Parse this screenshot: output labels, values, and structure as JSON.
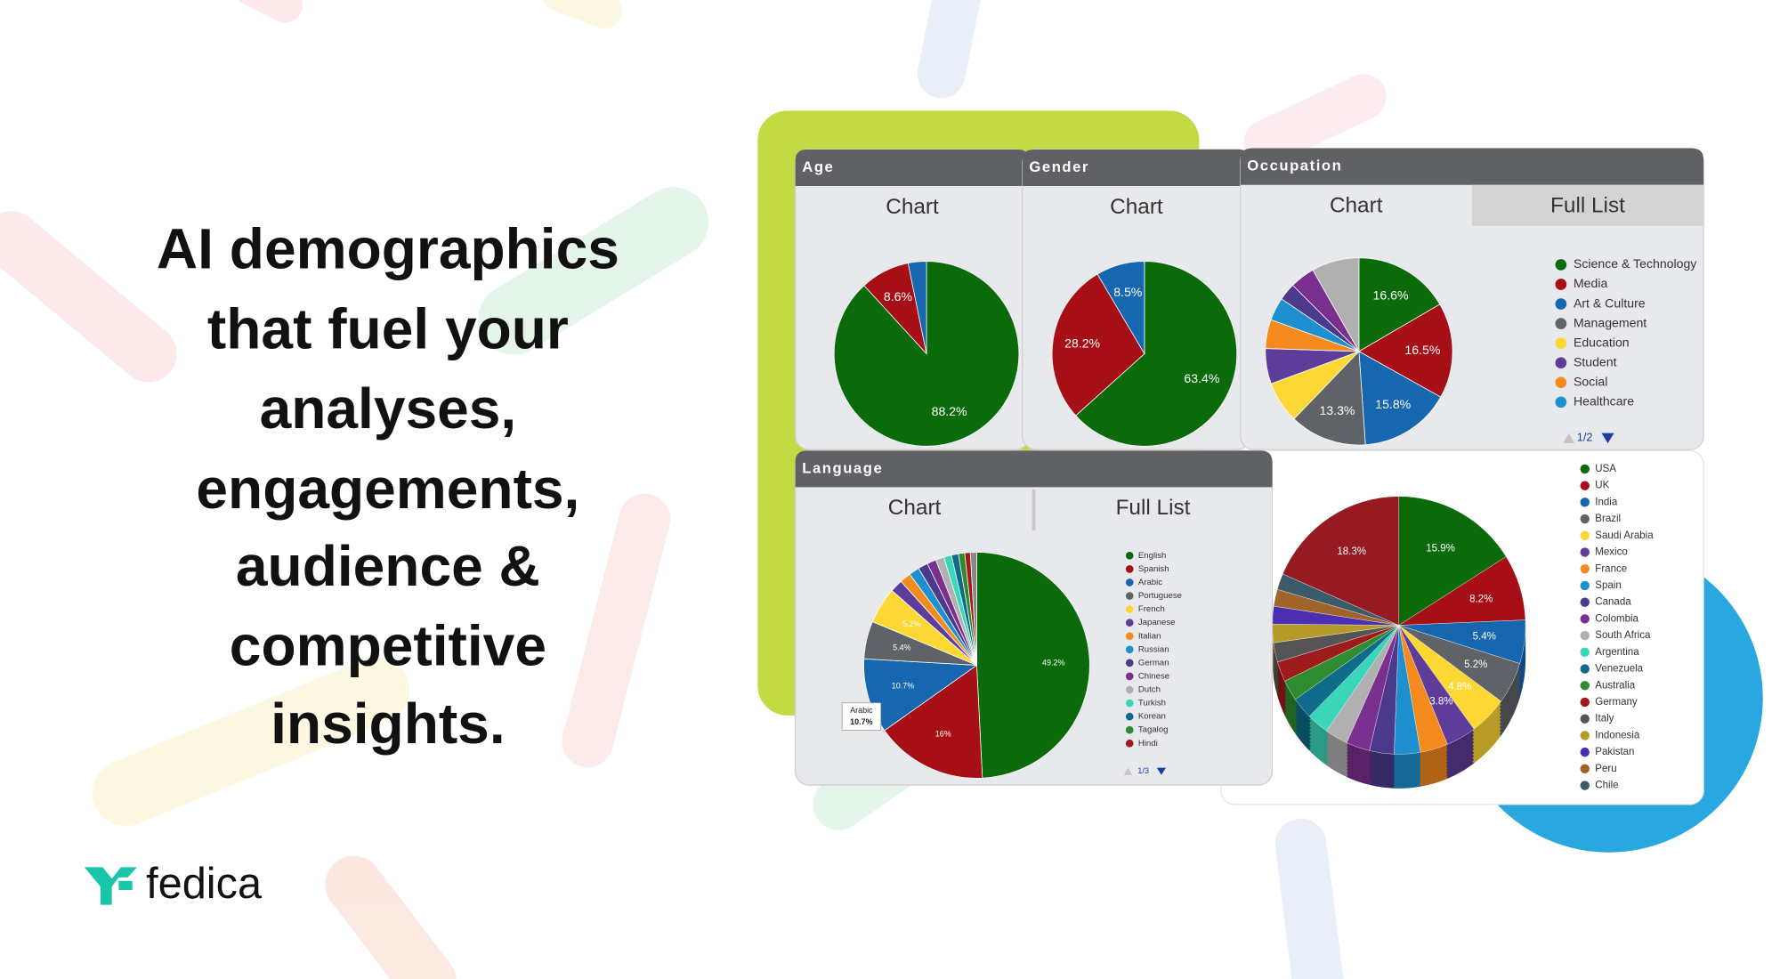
{
  "headline": [
    "AI demographics",
    "that fuel your",
    "analyses,",
    "engagements,",
    "audience &",
    "competitive",
    "insights."
  ],
  "brand": "fedica",
  "chart_data": [
    {
      "type": "pie",
      "title": "Age",
      "tabs": [
        "Chart"
      ],
      "categories": [
        null,
        null,
        null
      ],
      "values": [
        88.2,
        8.6,
        3.2
      ],
      "value_labels": [
        "88.2%",
        "8.6%",
        null
      ],
      "colors": [
        "#0b6b0b",
        "#a50f15",
        "#1666b0"
      ]
    },
    {
      "type": "pie",
      "title": "Gender",
      "tabs": [
        "Chart"
      ],
      "categories": [
        null,
        null,
        null
      ],
      "values": [
        63.4,
        28.2,
        8.5
      ],
      "value_labels": [
        "63.4%",
        "28.2%",
        "8.5%"
      ],
      "colors": [
        "#0b6b0b",
        "#a50f15",
        "#1666b0"
      ]
    },
    {
      "type": "pie",
      "title": "Occupation",
      "tabs": [
        "Chart",
        "Full List"
      ],
      "pager": "1/2",
      "categories": [
        "Science & Technology",
        "Media",
        "Art & Culture",
        "Management",
        "Education",
        "Student",
        "Social",
        "Healthcare",
        null,
        null,
        null
      ],
      "values": [
        16.6,
        16.5,
        15.8,
        13.3,
        7.2,
        6.1,
        5.0,
        4.0,
        3.0,
        4.3,
        8.2
      ],
      "value_labels": [
        "16.6%",
        "16.5%",
        "15.8%",
        "13.3%",
        null,
        null,
        null,
        null,
        null,
        null,
        null
      ],
      "colors": [
        "#0b6b0b",
        "#a50f15",
        "#1666b0",
        "#5f6368",
        "#fdd835",
        "#5e3c99",
        "#f58a1f",
        "#1e90d0",
        "#4b3a8c",
        "#7b2f8e",
        "#b0b0b0"
      ]
    },
    {
      "type": "pie",
      "title": "Language",
      "tabs": [
        "Chart",
        "Full List"
      ],
      "pager": "1/3",
      "categories": [
        "English",
        "Spanish",
        "Arabic",
        "Portuguese",
        "French",
        "Japanese",
        "Italian",
        "Russian",
        "German",
        "Chinese",
        "Dutch",
        "Turkish",
        "Korean",
        "Tagalog",
        "Hindi",
        null
      ],
      "values": [
        49.2,
        16,
        10.7,
        5.4,
        5.2,
        1.8,
        1.6,
        1.5,
        1.4,
        1.3,
        1.2,
        1.1,
        1.0,
        0.9,
        0.8,
        0.9
      ],
      "value_labels": [
        "49.2%",
        "16%",
        "10.7%",
        "5.4%",
        "5.2%",
        null,
        null,
        null,
        null,
        null,
        null,
        null,
        null,
        null,
        null,
        null
      ],
      "colors": [
        "#0b6b0b",
        "#a50f15",
        "#1666b0",
        "#5f6368",
        "#fdd835",
        "#5e3c99",
        "#f58a1f",
        "#1e90d0",
        "#4b3a8c",
        "#7b2f8e",
        "#b0b0b0",
        "#3ad6b9",
        "#0e6b8a",
        "#2e8b2e",
        "#9e1b1b",
        "#888888"
      ]
    },
    {
      "type": "pie3d",
      "categories": [
        "USA",
        "UK",
        "India",
        "Brazil",
        "Saudi Arabia",
        "Mexico",
        "France",
        "Spain",
        "Canada",
        "Colombia",
        "South Africa",
        "Argentina",
        "Venezuela",
        "Australia",
        "Germany",
        "Italy",
        "Indonesia",
        "Pakistan",
        "Peru",
        "Chile",
        null
      ],
      "values": [
        15.9,
        8.2,
        5.4,
        5.2,
        4.8,
        3.8,
        3.5,
        3.3,
        3.1,
        3.0,
        2.9,
        2.8,
        2.7,
        2.6,
        2.5,
        2.4,
        2.3,
        2.2,
        2.1,
        2.0,
        18.3
      ],
      "value_labels": [
        "15.9%",
        "8.2%",
        "5.4%",
        "5.2%",
        "4.8%",
        "3.8%",
        null,
        null,
        null,
        null,
        null,
        null,
        null,
        null,
        null,
        null,
        null,
        null,
        null,
        null,
        "18.3%"
      ],
      "colors": [
        "#0b6b0b",
        "#a50f15",
        "#1666b0",
        "#5f6368",
        "#fdd835",
        "#5e3c99",
        "#f58a1f",
        "#1e90d0",
        "#4b3a8c",
        "#7b2f8e",
        "#b0b0b0",
        "#3ad6b9",
        "#0e6b8a",
        "#2e8b2e",
        "#9e1b1b",
        "#555555",
        "#b59a2a",
        "#4a2fb0",
        "#a0632a",
        "#3b5b6b",
        "#951a22"
      ]
    }
  ]
}
